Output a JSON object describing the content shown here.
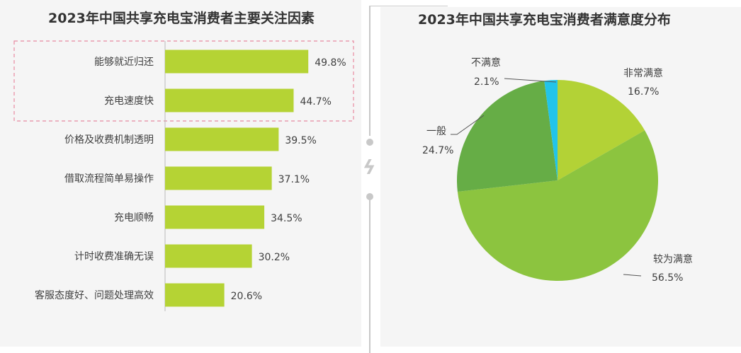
{
  "chart_data": [
    {
      "type": "bar",
      "orientation": "horizontal",
      "title": "2023年中国共享充电宝消费者主要关注因素",
      "categories": [
        "能够就近归还",
        "充电速度快",
        "价格及收费机制透明",
        "借取流程简单易操作",
        "充电顺畅",
        "计时收费准确无误",
        "客服态度好、问题处理高效"
      ],
      "values": [
        49.8,
        44.7,
        39.5,
        37.1,
        34.5,
        30.2,
        20.6
      ],
      "labels": [
        "49.8%",
        "44.7%",
        "39.5%",
        "37.1%",
        "34.5%",
        "30.2%",
        "20.6%"
      ],
      "highlighted_categories": [
        "能够就近归还",
        "充电速度快"
      ],
      "bar_color": "#b5d334",
      "highlight_color": "#e88aa0"
    },
    {
      "type": "pie",
      "title": "2023年中国共享充电宝消费者满意度分布",
      "slices": [
        {
          "name": "非常满意",
          "value": 16.7,
          "label": "16.7%",
          "color": "#b3d236"
        },
        {
          "name": "较为满意",
          "value": 56.5,
          "label": "56.5%",
          "color": "#8cc43f"
        },
        {
          "name": "一般",
          "value": 24.7,
          "label": "24.7%",
          "color": "#66ad46"
        },
        {
          "name": "不满意",
          "value": 2.1,
          "label": "2.1%",
          "color": "#22c4ea"
        }
      ]
    }
  ]
}
